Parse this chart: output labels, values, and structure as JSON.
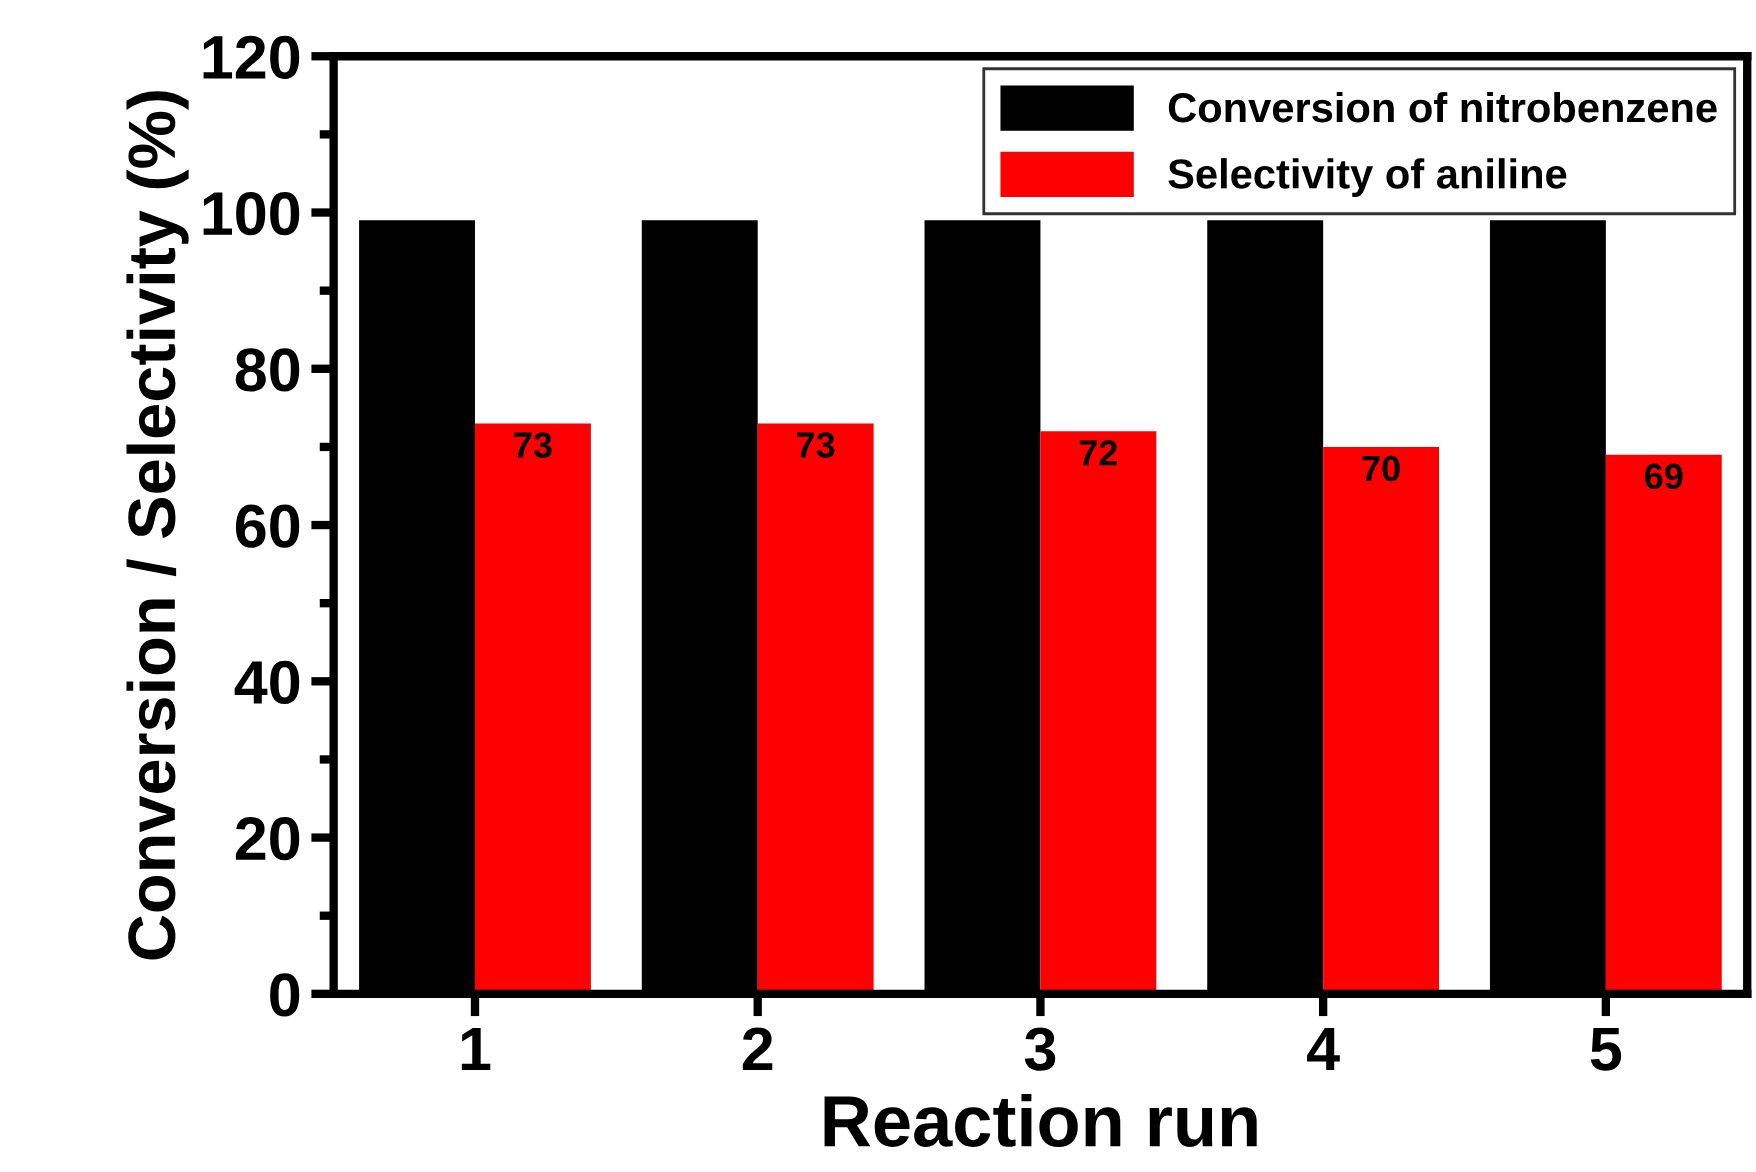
{
  "chart_data": {
    "type": "bar",
    "xlabel": "Reaction run",
    "ylabel": "Conversion / Selectivity (%)",
    "categories": [
      "1",
      "2",
      "3",
      "4",
      "5"
    ],
    "series": [
      {
        "name": "Conversion of nitrobenzene",
        "color": "#000000",
        "values": [
          99,
          99,
          99,
          99,
          99
        ]
      },
      {
        "name": "Selectivity of aniline",
        "color": "#ff0000",
        "values": [
          73,
          73,
          72,
          70,
          69
        ],
        "value_labels": [
          "73",
          "73",
          "72",
          "70",
          "69"
        ]
      }
    ],
    "ylim": [
      0,
      120
    ],
    "yticks": [
      0,
      20,
      40,
      60,
      80,
      100,
      120
    ],
    "grid": false,
    "legend": "top right"
  }
}
